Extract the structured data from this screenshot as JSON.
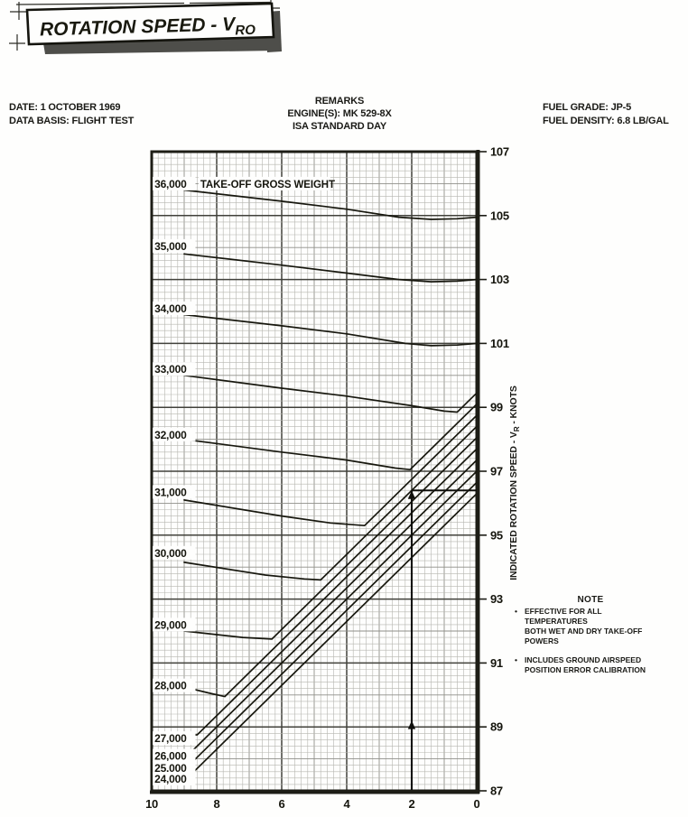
{
  "banner": {
    "title_prefix": "ROTATION SPEED - V",
    "title_sub": "RO"
  },
  "header": {
    "left": {
      "line1": "DATE: 1 OCTOBER 1969",
      "line2": "DATA BASIS: FLIGHT TEST"
    },
    "center": {
      "line1": "REMARKS",
      "line2": "ENGINE(S): MK 529-8X",
      "line3": "ISA STANDARD DAY"
    },
    "right": {
      "line1": "FUEL GRADE: JP-5",
      "line2": "FUEL DENSITY: 6.8 LB/GAL"
    }
  },
  "y_axis": {
    "title_prefix": "INDICATED ROTATION SPEED - V",
    "title_sub": "R",
    "title_suffix": " - KNOTS"
  },
  "note": {
    "title": "NOTE",
    "bullet": "•",
    "items": [
      {
        "line1": "EFFECTIVE FOR ALL TEMPERATURES",
        "line2": "BOTH WET AND DRY TAKE-OFF POWERS"
      },
      {
        "line1": "INCLUDES GROUND AIRSPEED",
        "line2": "POSITION ERROR CALIBRATION"
      }
    ]
  },
  "chart_data": {
    "type": "line",
    "title": "ROTATION SPEED - VRO",
    "xlabel": "",
    "ylabel": "INDICATED ROTATION SPEED - VR - KNOTS",
    "x_range": [
      10,
      0
    ],
    "y_range_knots": [
      87,
      107
    ],
    "x_ticks": [
      10,
      8,
      6,
      4,
      2,
      0
    ],
    "y_ticks": [
      107,
      105,
      103,
      101,
      99,
      97,
      95,
      93,
      91,
      89,
      87
    ],
    "grid": {
      "minor_step": 0.2,
      "medium_step": 1,
      "major_step": 2,
      "grid_on": true
    },
    "gross_weight_header": "TAKE-OFF GROSS WEIGHT",
    "series": [
      {
        "label": "36,000",
        "weight_lb": 36000,
        "label_x": 9.97,
        "label_kt": 106.0,
        "points": [
          [
            9,
            105.8
          ],
          [
            6,
            105.45
          ],
          [
            4,
            105.2
          ],
          [
            2.4,
            104.95
          ],
          [
            1.4,
            104.88
          ],
          [
            0.6,
            104.9
          ],
          [
            0,
            104.95
          ]
        ]
      },
      {
        "label": "35,000",
        "weight_lb": 35000,
        "label_x": 9.97,
        "label_kt": 104.05,
        "points": [
          [
            9,
            103.8
          ],
          [
            6,
            103.45
          ],
          [
            4,
            103.2
          ],
          [
            2.4,
            103.0
          ],
          [
            1.4,
            102.93
          ],
          [
            0.6,
            102.95
          ],
          [
            0,
            103.0
          ]
        ]
      },
      {
        "label": "34,000",
        "weight_lb": 34000,
        "label_x": 9.97,
        "label_kt": 102.1,
        "points": [
          [
            9,
            101.9
          ],
          [
            6,
            101.55
          ],
          [
            4,
            101.3
          ],
          [
            2.2,
            101.0
          ],
          [
            1.4,
            100.93
          ],
          [
            0.6,
            100.95
          ],
          [
            0,
            101.0
          ]
        ]
      },
      {
        "label": "33,000",
        "weight_lb": 33000,
        "label_x": 9.97,
        "label_kt": 100.2,
        "points": [
          [
            9,
            100.0
          ],
          [
            6,
            99.6
          ],
          [
            4,
            99.35
          ],
          [
            2,
            99.05
          ],
          [
            1.0,
            98.88
          ],
          [
            0.6,
            98.85
          ],
          [
            0,
            99.45
          ]
        ]
      },
      {
        "label": "32,000",
        "weight_lb": 32000,
        "label_x": 9.97,
        "label_kt": 98.15,
        "points": [
          [
            9,
            98.0
          ],
          [
            6,
            97.6
          ],
          [
            4,
            97.35
          ],
          [
            2.5,
            97.1
          ],
          [
            2.05,
            97.05
          ],
          [
            0,
            99.1
          ]
        ]
      },
      {
        "label": "31,000",
        "weight_lb": 31000,
        "label_x": 9.97,
        "label_kt": 96.35,
        "points": [
          [
            9,
            96.1
          ],
          [
            6,
            95.6
          ],
          [
            4.5,
            95.38
          ],
          [
            3.45,
            95.3
          ],
          [
            0,
            98.75
          ]
        ]
      },
      {
        "label": "30,000",
        "weight_lb": 30000,
        "label_x": 9.97,
        "label_kt": 94.45,
        "points": [
          [
            9,
            94.15
          ],
          [
            6.5,
            93.75
          ],
          [
            5.3,
            93.63
          ],
          [
            4.8,
            93.6
          ],
          [
            0,
            98.4
          ]
        ]
      },
      {
        "label": "29,000",
        "weight_lb": 29000,
        "label_x": 9.97,
        "label_kt": 92.2,
        "points": [
          [
            9,
            92.0
          ],
          [
            7.2,
            91.8
          ],
          [
            6.3,
            91.75
          ],
          [
            0,
            98.05
          ]
        ]
      },
      {
        "label": "28,000",
        "weight_lb": 28000,
        "label_x": 9.97,
        "label_kt": 90.3,
        "points": [
          [
            9,
            90.25
          ],
          [
            8.2,
            90.05
          ],
          [
            7.75,
            89.95
          ],
          [
            0,
            97.7
          ]
        ]
      },
      {
        "label": "27,000",
        "weight_lb": 27000,
        "label_x": 9.97,
        "label_kt": 88.65,
        "points": [
          [
            9,
            88.75
          ],
          [
            8.6,
            88.75
          ],
          [
            0,
            97.35
          ]
        ]
      },
      {
        "label": "26,000",
        "weight_lb": 26000,
        "label_x": 9.97,
        "label_kt": 88.1,
        "points": [
          [
            8.9,
            88.1
          ],
          [
            0,
            97.0
          ]
        ]
      },
      {
        "label": "25,000",
        "weight_lb": 25000,
        "label_x": 9.97,
        "label_kt": 87.72,
        "points": [
          [
            8.85,
            87.8
          ],
          [
            0,
            96.65
          ]
        ]
      },
      {
        "label": "24,000",
        "weight_lb": 24000,
        "label_x": 9.97,
        "label_kt": 87.38,
        "points": [
          [
            8.8,
            87.5
          ],
          [
            0,
            96.3
          ]
        ]
      }
    ],
    "guide": {
      "entry_x": 2,
      "result_knots": 96.4,
      "arrowheads_kt": [
        89.2,
        96.4
      ]
    }
  },
  "colors": {
    "ink": "#17170e",
    "grid_minor": "#b6b6b0",
    "grid_major": "#41413b",
    "banner_shadow": "#4e4e4a",
    "paper": "#fefefd"
  }
}
